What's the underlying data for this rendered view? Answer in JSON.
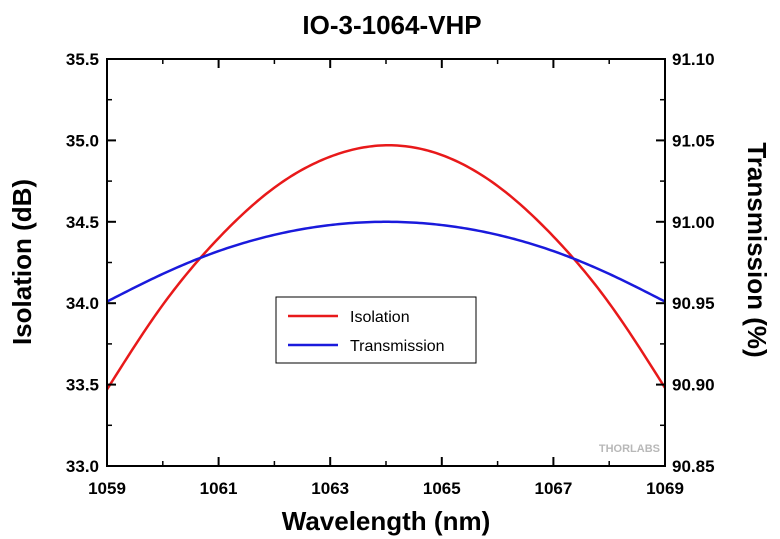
{
  "chart_data": {
    "type": "line",
    "title": "IO-3-1064-VHP",
    "xlabel": "Wavelength (nm)",
    "ylabel_left": "Isolation (dB)",
    "ylabel_right": "Transmission (%)",
    "xlim": [
      1059,
      1069
    ],
    "ylim_left": [
      33.0,
      35.5
    ],
    "ylim_right": [
      90.85,
      91.1
    ],
    "x_ticks": [
      1059,
      1061,
      1063,
      1065,
      1067,
      1069
    ],
    "x_tick_labels": [
      "1059",
      "1061",
      "1063",
      "1065",
      "1067",
      "1069"
    ],
    "y_left_ticks": [
      33.0,
      33.5,
      34.0,
      34.5,
      35.0,
      35.5
    ],
    "y_left_tick_labels": [
      "33.0",
      "33.5",
      "34.0",
      "34.5",
      "35.0",
      "35.5"
    ],
    "y_right_ticks": [
      90.85,
      90.9,
      90.95,
      91.0,
      91.05,
      91.1
    ],
    "y_right_tick_labels": [
      "90.85",
      "90.90",
      "90.95",
      "91.00",
      "91.05",
      "91.10"
    ],
    "grid": false,
    "legend_position": "center",
    "series": [
      {
        "name": "Isolation",
        "axis": "left",
        "color": "#e8191a",
        "x": [
          1059,
          1060,
          1061,
          1062,
          1063,
          1064,
          1065,
          1066,
          1067,
          1068,
          1069
        ],
        "values": [
          33.47,
          33.99,
          34.4,
          34.71,
          34.9,
          34.97,
          34.91,
          34.72,
          34.41,
          34.0,
          33.48
        ]
      },
      {
        "name": "Transmission",
        "axis": "right",
        "color": "#1a1adc",
        "x": [
          1059,
          1060,
          1061,
          1062,
          1063,
          1064,
          1065,
          1066,
          1067,
          1068,
          1069
        ],
        "values": [
          90.951,
          90.968,
          90.982,
          90.992,
          90.998,
          91.0,
          90.998,
          90.992,
          90.982,
          90.968,
          90.951
        ]
      }
    ],
    "watermark": "THORLABS"
  }
}
